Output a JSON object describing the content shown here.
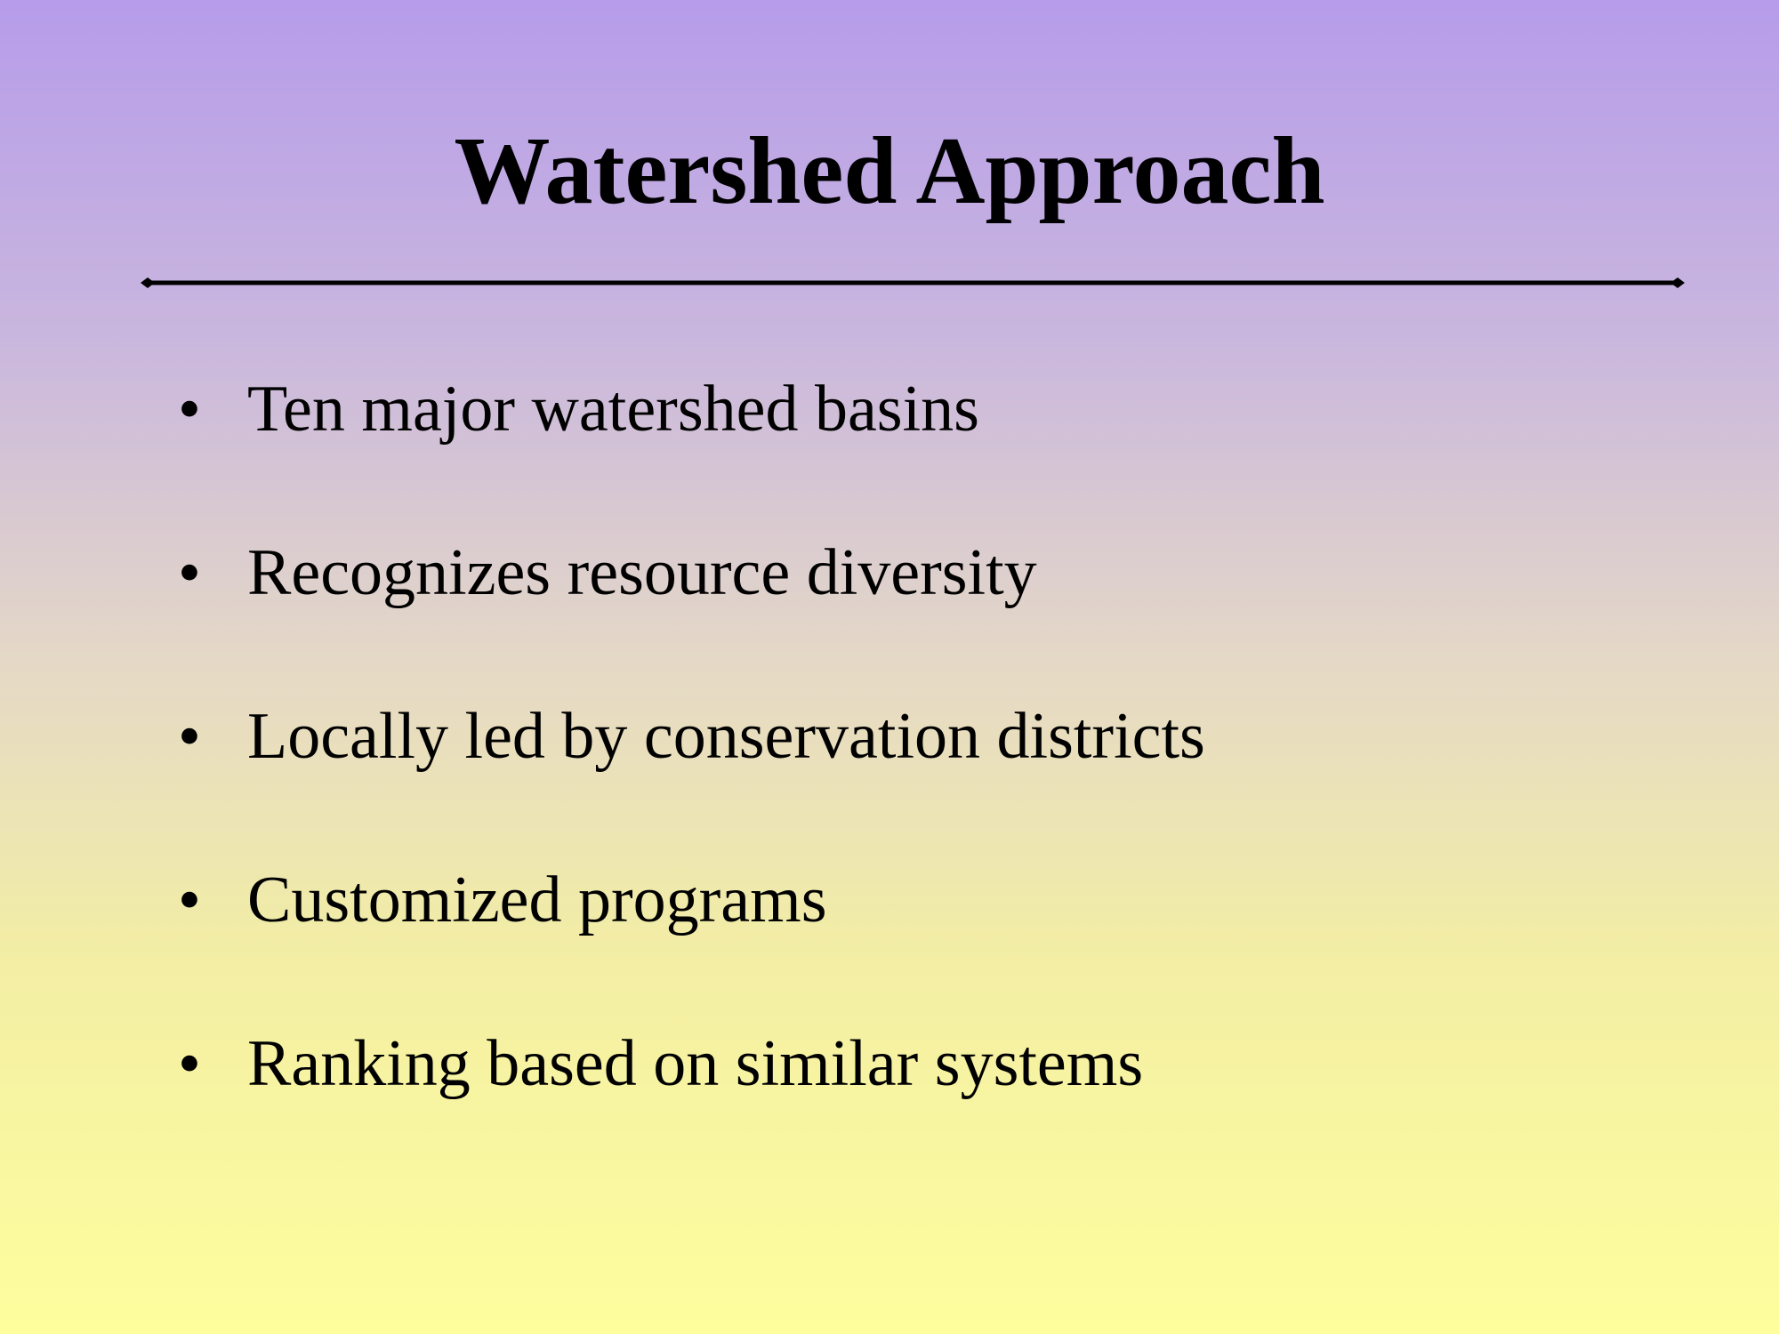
{
  "slide": {
    "title": "Watershed Approach",
    "bullet_symbol": "•",
    "bullets": [
      "Ten major watershed basins",
      "Recognizes resource diversity",
      "Locally led by conservation districts",
      "Customized programs",
      "Ranking based on similar systems"
    ]
  },
  "colors": {
    "gradient_top": "#b69cea",
    "gradient_bottom": "#fefe9d",
    "text": "#000000"
  }
}
